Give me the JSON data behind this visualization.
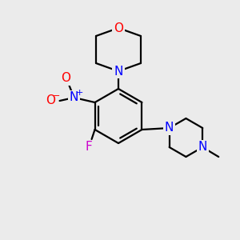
{
  "background_color": "#ebebeb",
  "bond_color": "#000000",
  "atom_colors": {
    "O": "#ff0000",
    "N": "#0000ff",
    "O_nitro": "#ff0000",
    "F": "#cc00cc"
  },
  "figsize": [
    3.0,
    3.0
  ],
  "dpi": 100
}
